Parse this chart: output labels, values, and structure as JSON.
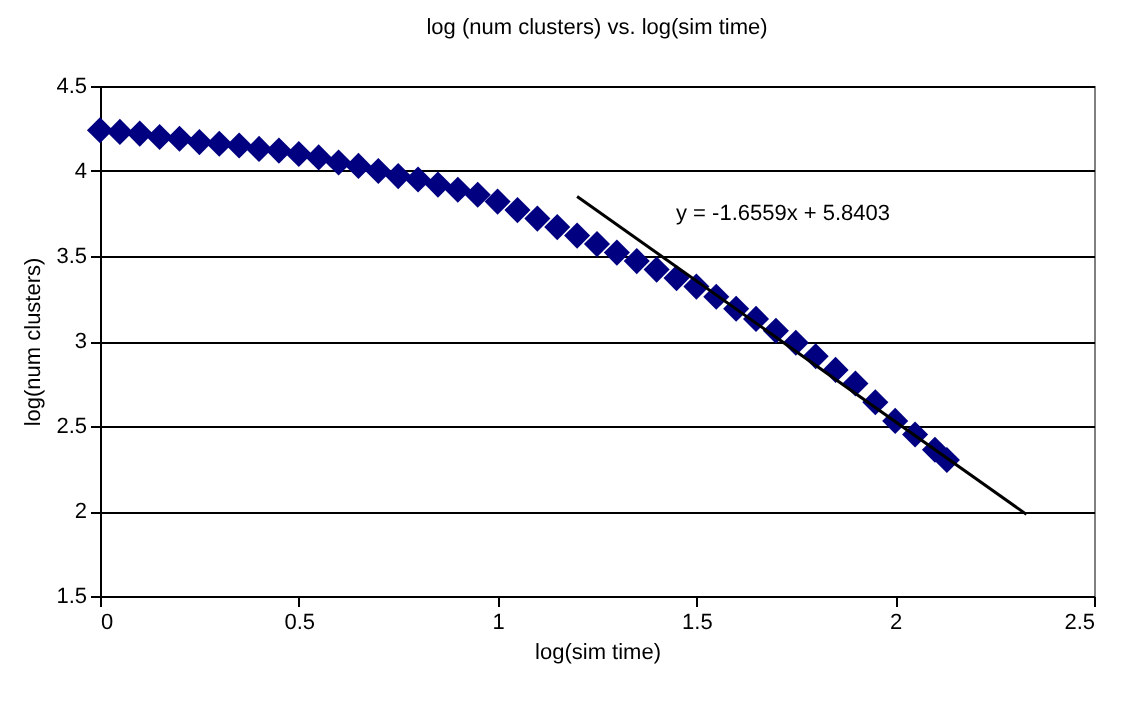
{
  "chart_data": {
    "type": "scatter",
    "title": "log (num clusters) vs. log(sim time)",
    "xlabel": "log(sim time)",
    "ylabel": "log(num clusters)",
    "xlim": [
      0,
      2.5
    ],
    "xticks": [
      0,
      0.5,
      1,
      1.5,
      2,
      2.5
    ],
    "ylim": [
      1.5,
      4.5
    ],
    "yticks": [
      1.5,
      2,
      2.5,
      3,
      3.5,
      4,
      4.5
    ],
    "grid": "y",
    "annotations": [
      "y = -1.6559x + 5.8403"
    ],
    "series": [
      {
        "marker": "diamond",
        "color": "#000080",
        "x": [
          0,
          0.05,
          0.1,
          0.15,
          0.2,
          0.25,
          0.3,
          0.35,
          0.4,
          0.45,
          0.5,
          0.55,
          0.6,
          0.65,
          0.7,
          0.75,
          0.8,
          0.85,
          0.9,
          0.95,
          1,
          1.05,
          1.1,
          1.15,
          1.2,
          1.25,
          1.3,
          1.35,
          1.4,
          1.45,
          1.5,
          1.55,
          1.6,
          1.65,
          1.7,
          1.75,
          1.8,
          1.85,
          1.9,
          1.95,
          2,
          2.05,
          2.1,
          2.13
        ],
        "values": [
          4.24,
          4.23,
          4.22,
          4.2,
          4.19,
          4.17,
          4.16,
          4.15,
          4.13,
          4.12,
          4.1,
          4.08,
          4.05,
          4.03,
          4,
          3.97,
          3.95,
          3.92,
          3.89,
          3.86,
          3.82,
          3.77,
          3.72,
          3.67,
          3.62,
          3.57,
          3.52,
          3.47,
          3.42,
          3.37,
          3.32,
          3.26,
          3.19,
          3.13,
          3.06,
          2.99,
          2.91,
          2.83,
          2.75,
          2.64,
          2.53,
          2.45,
          2.36,
          2.3
        ]
      },
      {
        "type": "line",
        "color": "#000000",
        "x": [
          1.2,
          2.33
        ],
        "values": [
          3.85,
          1.98
        ]
      }
    ]
  }
}
